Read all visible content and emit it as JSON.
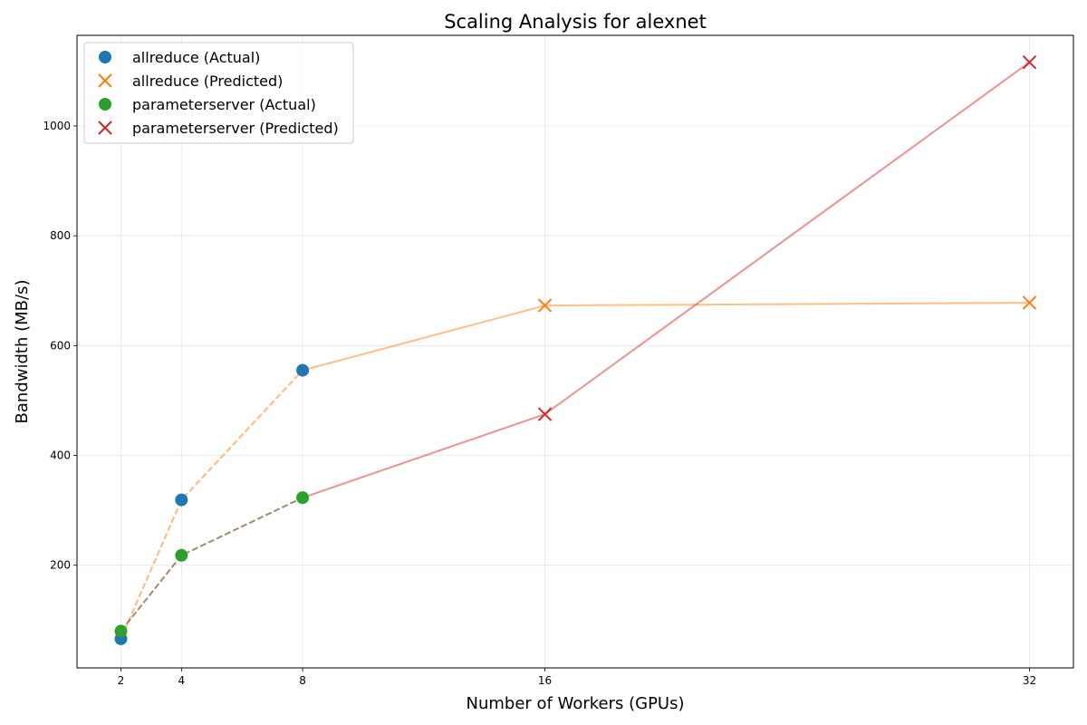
{
  "chart_data": {
    "type": "scatter",
    "title": "Scaling Analysis for alexnet",
    "xlabel": "Number of Workers (GPUs)",
    "ylabel": "Bandwidth (MB/s)",
    "xlim": [
      0.55,
      33.45
    ],
    "ylim": [
      13,
      1165
    ],
    "xticks": [
      2,
      4,
      8,
      16,
      32
    ],
    "yticks": [
      200,
      400,
      600,
      800,
      1000
    ],
    "grid": true,
    "legend_position": "top-left",
    "series": [
      {
        "name": "allreduce (Actual)",
        "marker": "circle",
        "color": "#1f77b4",
        "points": [
          {
            "x": 2,
            "y": 66
          },
          {
            "x": 4,
            "y": 319
          },
          {
            "x": 8,
            "y": 555
          }
        ]
      },
      {
        "name": "allreduce (Predicted)",
        "marker": "x",
        "color": "#ff7f0e",
        "points": [
          {
            "x": 16,
            "y": 673
          },
          {
            "x": 32,
            "y": 678
          }
        ]
      },
      {
        "name": "parameterserver (Actual)",
        "marker": "circle",
        "color": "#2ca02c",
        "points": [
          {
            "x": 2,
            "y": 80
          },
          {
            "x": 4,
            "y": 218
          },
          {
            "x": 8,
            "y": 323
          }
        ]
      },
      {
        "name": "parameterserver (Predicted)",
        "marker": "x",
        "color": "#d62728",
        "points": [
          {
            "x": 16,
            "y": 475
          },
          {
            "x": 32,
            "y": 1116
          }
        ]
      }
    ],
    "lines": [
      {
        "color": "#ff7f0e",
        "opacity": 0.5,
        "dashed": false,
        "points": [
          {
            "x": 8,
            "y": 555
          },
          {
            "x": 16,
            "y": 673
          },
          {
            "x": 32,
            "y": 678
          }
        ]
      },
      {
        "color": "#d62728",
        "opacity": 0.5,
        "dashed": false,
        "points": [
          {
            "x": 8,
            "y": 323
          },
          {
            "x": 16,
            "y": 475
          },
          {
            "x": 32,
            "y": 1116
          }
        ]
      },
      {
        "color": "#ff7f0e",
        "opacity": 0.55,
        "dashed": true,
        "points": [
          {
            "x": 2,
            "y": 66
          },
          {
            "x": 4,
            "y": 319
          },
          {
            "x": 8,
            "y": 555
          }
        ]
      },
      {
        "color": "#8c6d4a",
        "opacity": 0.8,
        "dashed": true,
        "points": [
          {
            "x": 2,
            "y": 80
          },
          {
            "x": 4,
            "y": 218
          },
          {
            "x": 8,
            "y": 323
          }
        ]
      }
    ]
  }
}
